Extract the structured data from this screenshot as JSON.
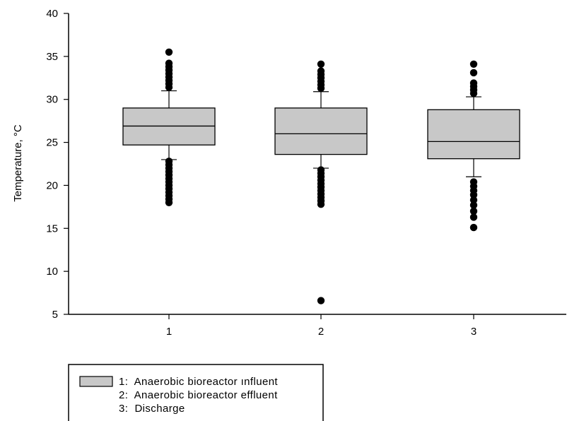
{
  "chart_data": {
    "type": "box",
    "title": "",
    "xlabel": "",
    "ylabel": "Temperature, °C",
    "ylim": [
      5,
      40
    ],
    "yticks": [
      "5",
      "10",
      "15",
      "20",
      "25",
      "30",
      "35",
      "40"
    ],
    "xticks": [
      "1",
      "2",
      "3"
    ],
    "grid": false,
    "legend_position": "bottom-left",
    "box_color": "#c8c8c8",
    "categories": [
      "1",
      "2",
      "3"
    ],
    "boxes": [
      {
        "category": "1",
        "whisker_low": 23.0,
        "q1": 24.7,
        "median": 26.9,
        "q3": 29.0,
        "whisker_high": 31.0,
        "outliers": [
          18.0,
          18.4,
          18.8,
          19.2,
          19.6,
          20.0,
          20.4,
          20.8,
          21.2,
          21.6,
          22.0,
          22.4,
          22.8,
          31.4,
          31.8,
          32.2,
          32.6,
          33.0,
          33.4,
          33.8,
          34.2,
          35.5
        ]
      },
      {
        "category": "2",
        "whisker_low": 22.0,
        "q1": 23.6,
        "median": 26.0,
        "q3": 29.0,
        "whisker_high": 30.9,
        "outliers": [
          6.6,
          17.8,
          18.2,
          18.6,
          19.0,
          19.4,
          19.8,
          20.2,
          20.6,
          21.0,
          21.4,
          21.8,
          31.3,
          31.7,
          32.1,
          32.5,
          32.9,
          33.3,
          34.1
        ]
      },
      {
        "category": "3",
        "whisker_low": 21.0,
        "q1": 23.1,
        "median": 25.1,
        "q3": 28.8,
        "whisker_high": 30.3,
        "outliers": [
          15.1,
          16.3,
          17.0,
          17.7,
          18.3,
          18.9,
          19.4,
          19.9,
          20.4,
          30.7,
          31.1,
          31.5,
          31.9,
          33.1,
          34.1
        ]
      }
    ],
    "legend": [
      "1:  Anaerobic bioreactor ınfluent",
      "2:  Anaerobic bioreactor effluent",
      "3:  Discharge"
    ]
  }
}
